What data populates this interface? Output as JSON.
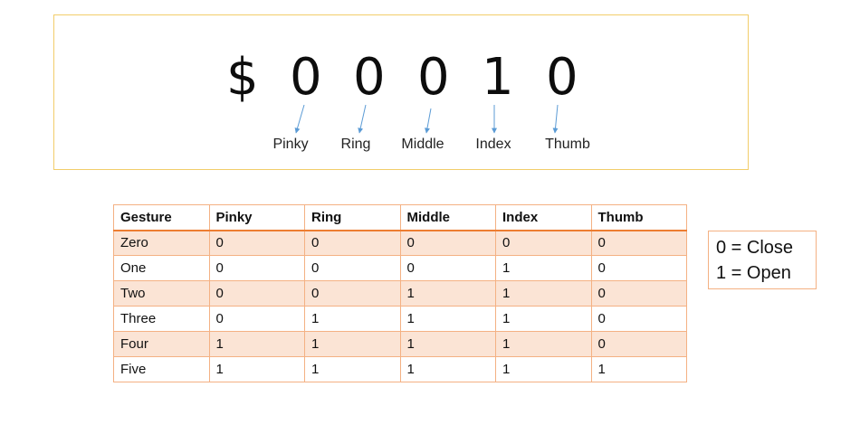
{
  "code": {
    "symbol": "$",
    "digits": [
      "0",
      "0",
      "0",
      "1",
      "0"
    ],
    "fingers": [
      "Pinky",
      "Ring",
      "Middle",
      "Index",
      "Thumb"
    ]
  },
  "table": {
    "headers": [
      "Gesture",
      "Pinky",
      "Ring",
      "Middle",
      "Index",
      "Thumb"
    ],
    "rows": [
      [
        "Zero",
        "0",
        "0",
        "0",
        "0",
        "0"
      ],
      [
        "One",
        "0",
        "0",
        "0",
        "1",
        "0"
      ],
      [
        "Two",
        "0",
        "0",
        "1",
        "1",
        "0"
      ],
      [
        "Three",
        "0",
        "1",
        "1",
        "1",
        "0"
      ],
      [
        "Four",
        "1",
        "1",
        "1",
        "1",
        "0"
      ],
      [
        "Five",
        "1",
        "1",
        "1",
        "1",
        "1"
      ]
    ]
  },
  "legend": {
    "close": "0 = Close",
    "open": "1 = Open"
  },
  "colors": {
    "code_box_border": "#f2cd6a",
    "table_border": "#f4b183",
    "table_header_rule": "#ed7d31",
    "table_band": "#fbe4d5",
    "arrow": "#5b9bd5"
  }
}
